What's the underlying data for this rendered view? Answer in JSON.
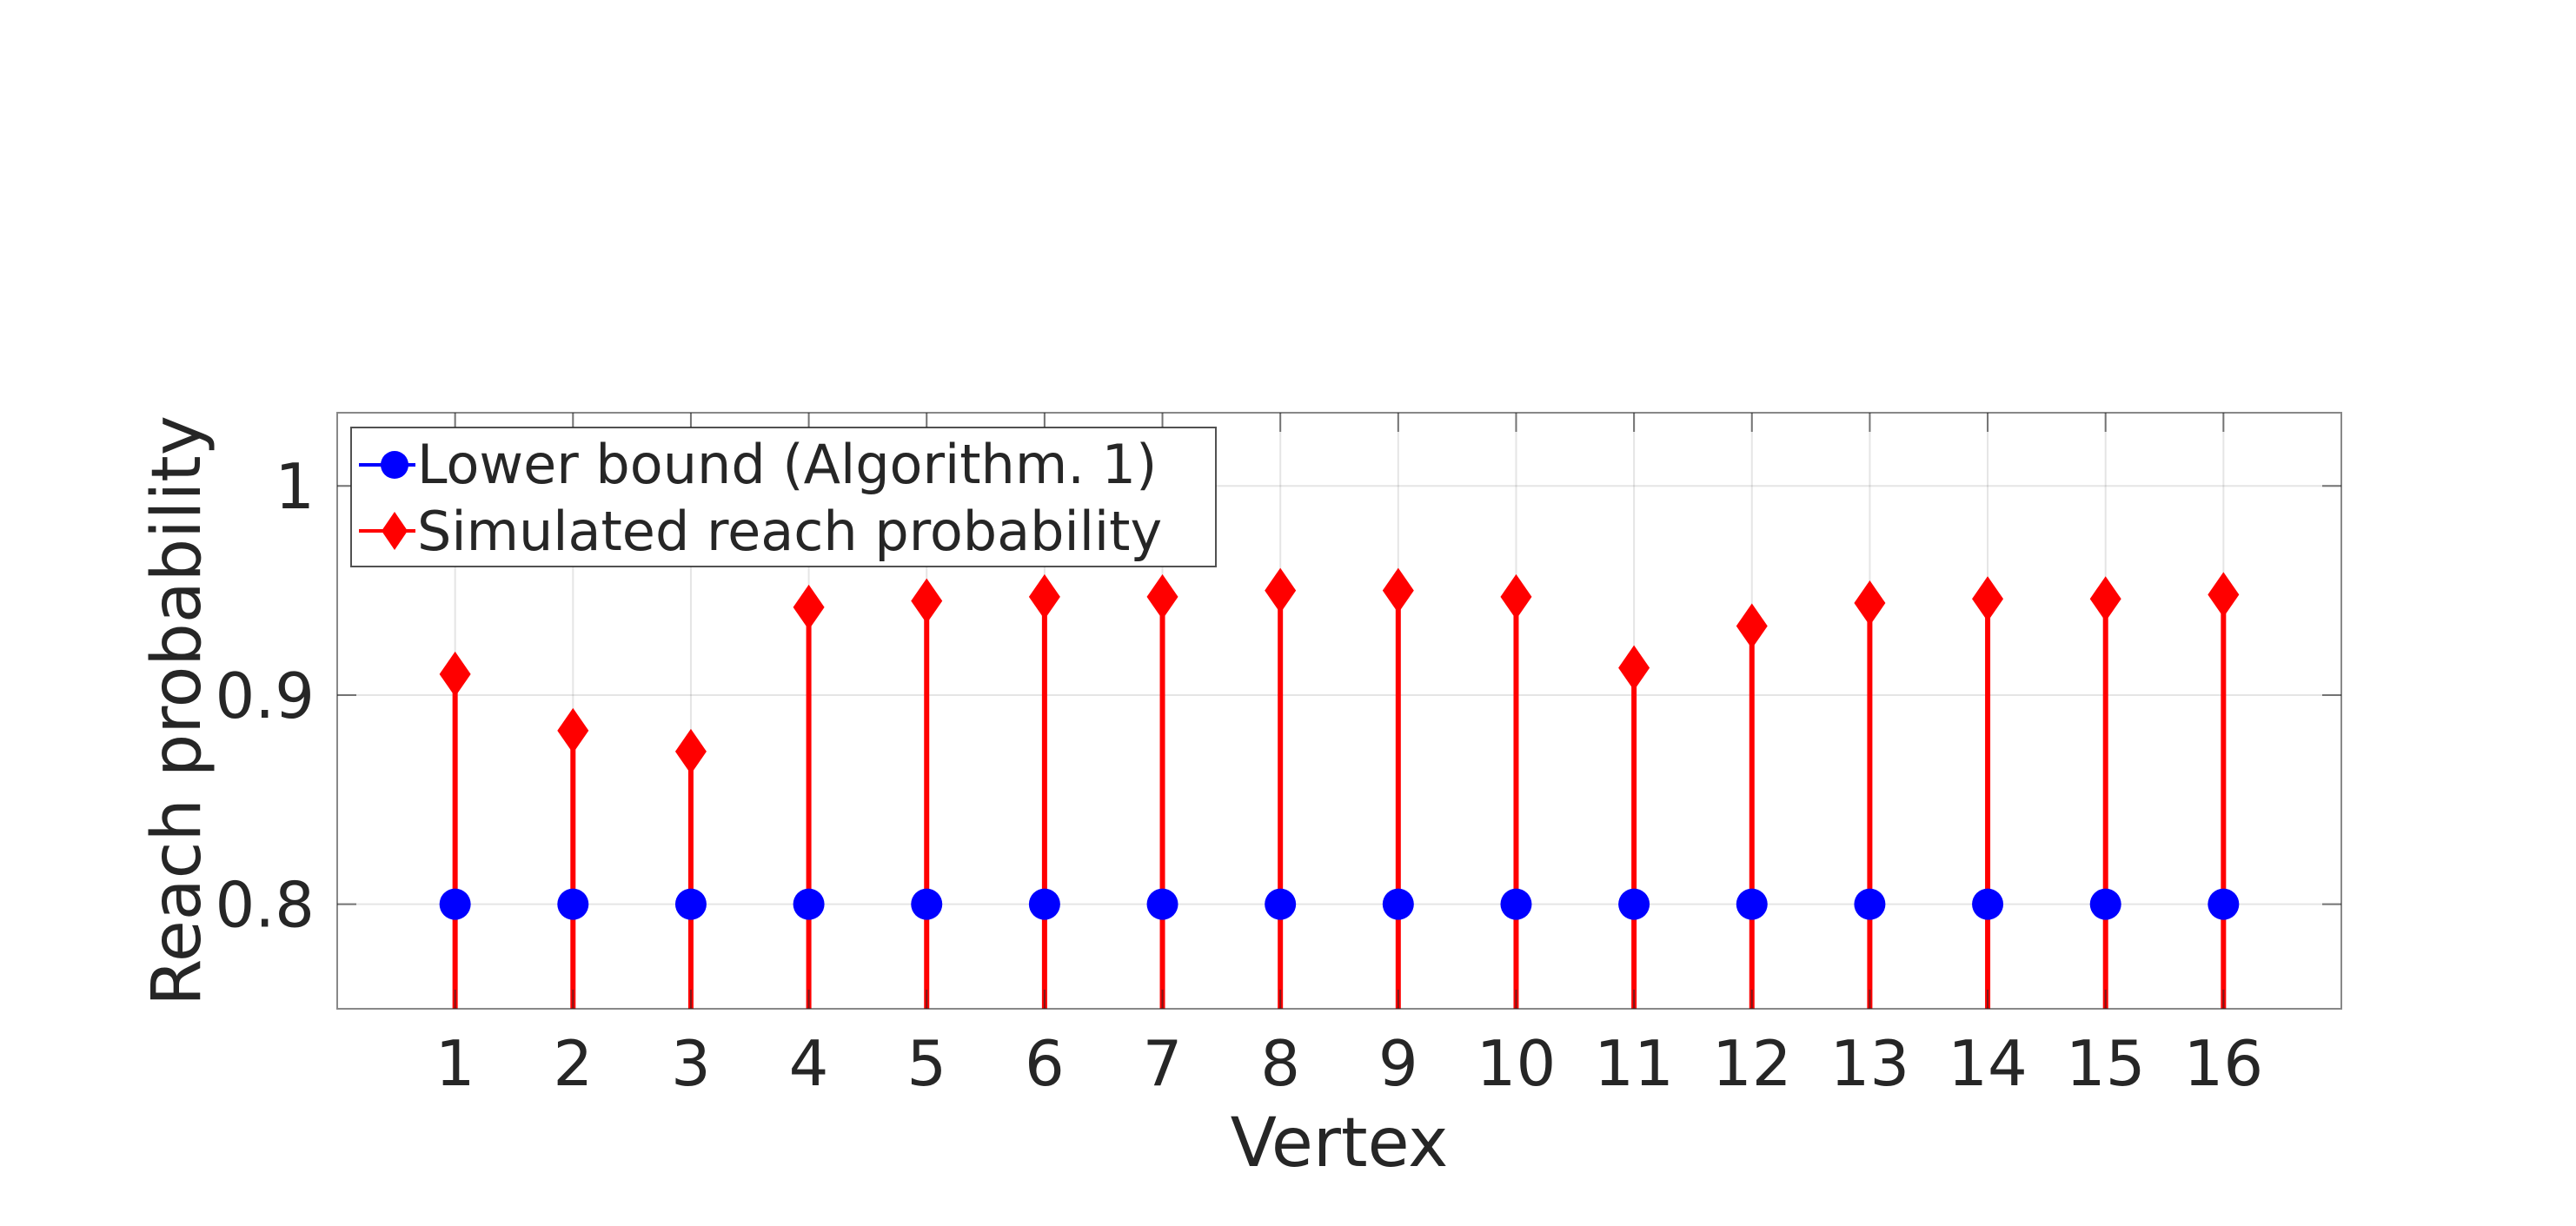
{
  "chart_data": {
    "type": "scatter",
    "style": "stem",
    "xlabel": "Vertex",
    "ylabel": "Reach probability",
    "x": [
      1,
      2,
      3,
      4,
      5,
      6,
      7,
      8,
      9,
      10,
      11,
      12,
      13,
      14,
      15,
      16
    ],
    "xticks": [
      "1",
      "2",
      "3",
      "4",
      "5",
      "6",
      "7",
      "8",
      "9",
      "10",
      "11",
      "12",
      "13",
      "14",
      "15",
      "16"
    ],
    "yticks": [
      "0.8",
      "0.9",
      "1"
    ],
    "xlim": [
      0,
      17
    ],
    "ylim": [
      0.75,
      1.035
    ],
    "grid": true,
    "legend_position": "top-left",
    "series": [
      {
        "name": "Lower bound (Algorithm. 1)",
        "marker": "circle",
        "color": "#0000ff",
        "values": [
          0.8,
          0.8,
          0.8,
          0.8,
          0.8,
          0.8,
          0.8,
          0.8,
          0.8,
          0.8,
          0.8,
          0.8,
          0.8,
          0.8,
          0.8,
          0.8
        ]
      },
      {
        "name": "Simulated reach probability",
        "marker": "diamond",
        "color": "#ff0000",
        "values": [
          0.91,
          0.883,
          0.873,
          0.942,
          0.945,
          0.947,
          0.947,
          0.95,
          0.95,
          0.947,
          0.913,
          0.933,
          0.944,
          0.946,
          0.946,
          0.948
        ]
      }
    ]
  }
}
